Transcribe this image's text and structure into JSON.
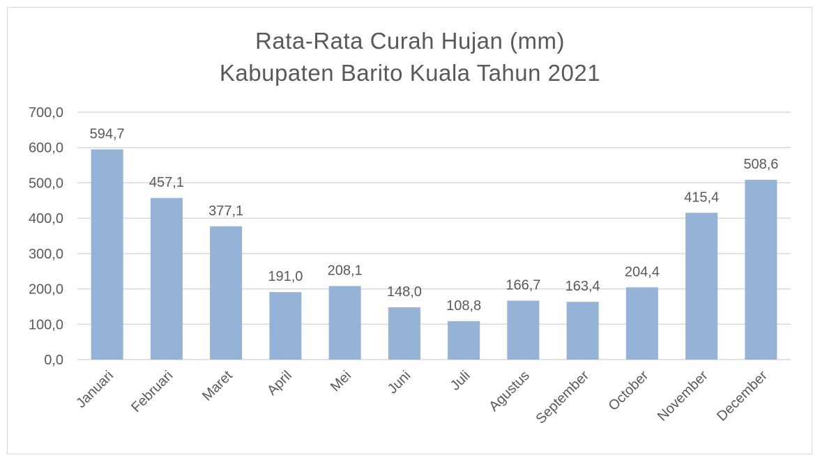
{
  "chart_data": {
    "type": "bar",
    "title": "Rata-Rata Curah Hujan (mm)",
    "subtitle": "Kabupaten Barito Kuala Tahun 2021",
    "categories": [
      "Januari",
      "Februari",
      "Maret",
      "April",
      "Mei",
      "Juni",
      "Juli",
      "Agustus",
      "September",
      "October",
      "November",
      "December"
    ],
    "values": [
      594.7,
      457.1,
      377.1,
      191.0,
      208.1,
      148.0,
      108.8,
      166.7,
      163.4,
      204.4,
      415.4,
      508.6
    ],
    "value_labels": [
      "594,7",
      "457,1",
      "377,1",
      "191,0",
      "208,1",
      "148,0",
      "108,8",
      "166,7",
      "163,4",
      "204,4",
      "415,4",
      "508,6"
    ],
    "y_ticks": [
      0,
      100,
      200,
      300,
      400,
      500,
      600,
      700
    ],
    "y_tick_labels": [
      "0,0",
      "100,0",
      "200,0",
      "300,0",
      "400,0",
      "500,0",
      "600,0",
      "700,0"
    ],
    "ylim": [
      0,
      700
    ],
    "xlabel": "",
    "ylabel": "",
    "grid": true,
    "legend": "none",
    "bar_color": "#95b3d7"
  }
}
